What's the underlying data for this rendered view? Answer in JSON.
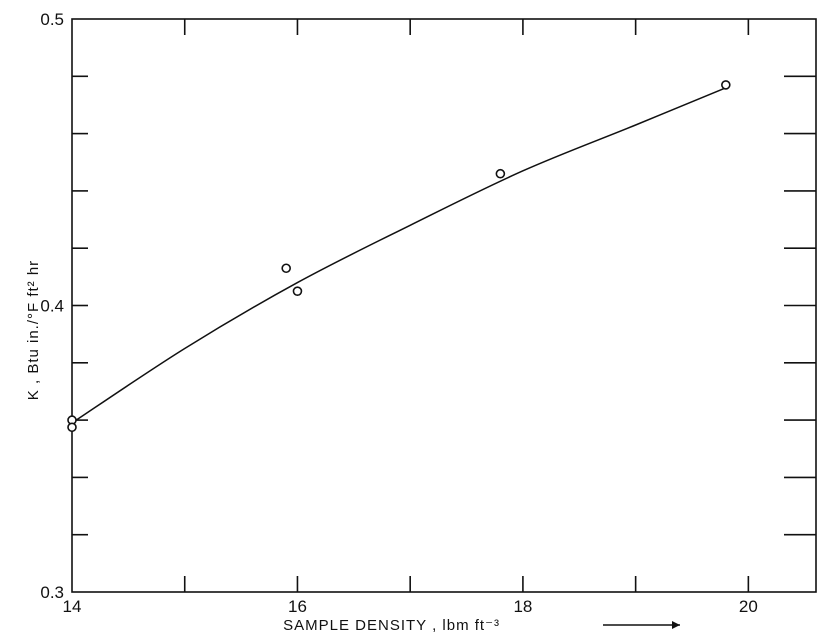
{
  "chart_data": {
    "type": "scatter",
    "title": "",
    "xlabel": "SAMPLE DENSITY , lbm ft⁻³",
    "ylabel": "K , Btu in./°F ft² hr",
    "xlim": [
      14,
      20.6
    ],
    "ylim": [
      0.3,
      0.5
    ],
    "x_ticks": [
      14,
      16,
      18,
      20
    ],
    "x_tick_labels": [
      "14",
      "16",
      "18",
      "20"
    ],
    "y_ticks": [
      0.3,
      0.4,
      0.5
    ],
    "y_tick_labels": [
      "0.3",
      "0.4",
      "0.5"
    ],
    "x_minor_ticks": [
      15,
      17,
      19
    ],
    "y_minor_ticks": [
      0.32,
      0.34,
      0.36,
      0.38,
      0.42,
      0.44,
      0.46,
      0.48
    ],
    "grid": false,
    "points": [
      {
        "x": 14.0,
        "y": 0.36
      },
      {
        "x": 14.0,
        "y": 0.3575
      },
      {
        "x": 15.9,
        "y": 0.413
      },
      {
        "x": 16.0,
        "y": 0.405
      },
      {
        "x": 17.8,
        "y": 0.446
      },
      {
        "x": 19.8,
        "y": 0.477
      }
    ],
    "fit_curve": [
      {
        "x": 14.0,
        "y": 0.359
      },
      {
        "x": 15.0,
        "y": 0.385
      },
      {
        "x": 16.0,
        "y": 0.408
      },
      {
        "x": 17.0,
        "y": 0.428
      },
      {
        "x": 18.0,
        "y": 0.447
      },
      {
        "x": 19.0,
        "y": 0.463
      },
      {
        "x": 19.8,
        "y": 0.476
      }
    ]
  }
}
